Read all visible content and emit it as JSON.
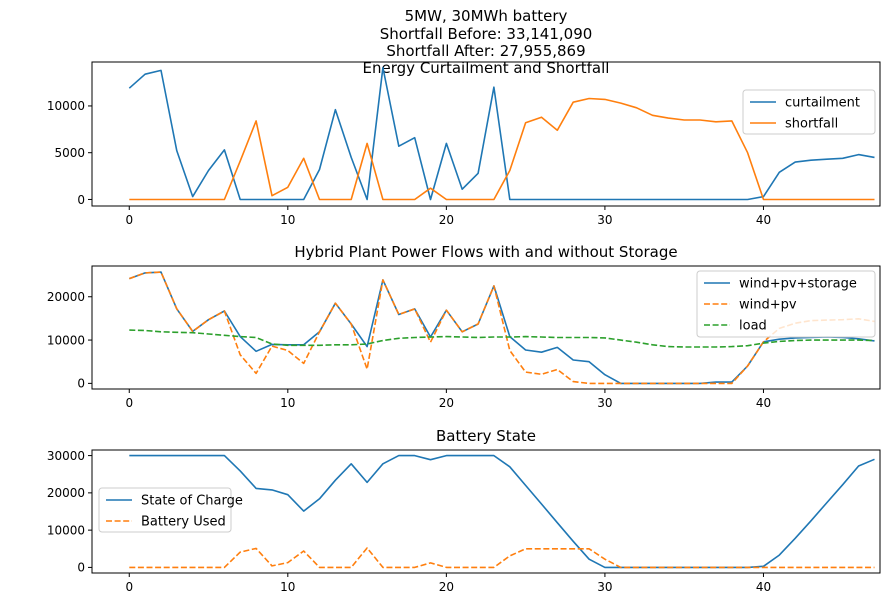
{
  "chart_data": [
    {
      "type": "line",
      "title_lines": [
        "5MW, 30MWh battery",
        "Shortfall Before: 33,141,090",
        "Shortfall After: 27,955,869",
        "Energy Curtailment and Shortfall"
      ],
      "x": [
        0,
        1,
        2,
        3,
        4,
        5,
        6,
        7,
        8,
        9,
        10,
        11,
        12,
        13,
        14,
        15,
        16,
        17,
        18,
        19,
        20,
        21,
        22,
        23,
        24,
        25,
        26,
        27,
        28,
        29,
        30,
        31,
        32,
        33,
        34,
        35,
        36,
        37,
        38,
        39,
        40,
        41,
        42,
        43,
        44,
        45,
        46,
        47
      ],
      "xlim": [
        -2.35,
        47.35
      ],
      "ylim": [
        -700,
        14700
      ],
      "xticks": [
        0,
        10,
        20,
        30,
        40
      ],
      "yticks": [
        0,
        5000,
        10000
      ],
      "grid": false,
      "legend_position": "upper-right",
      "series": [
        {
          "name": "curtailment",
          "color": "#1f77b4",
          "dash": "solid",
          "values": [
            11900,
            13400,
            13800,
            5200,
            300,
            3100,
            5300,
            0,
            0,
            0,
            0,
            0,
            3200,
            9600,
            4500,
            0,
            14100,
            5700,
            6600,
            0,
            6000,
            1100,
            2800,
            12000,
            0,
            0,
            0,
            0,
            0,
            0,
            0,
            0,
            0,
            0,
            0,
            0,
            0,
            0,
            0,
            0,
            300,
            2900,
            4000,
            4200,
            4300,
            4400,
            4800,
            4500
          ]
        },
        {
          "name": "shortfall",
          "color": "#ff7f0e",
          "dash": "solid",
          "values": [
            0,
            0,
            0,
            0,
            0,
            0,
            0,
            4100,
            8400,
            400,
            1300,
            4400,
            0,
            0,
            0,
            6000,
            0,
            0,
            0,
            1200,
            0,
            0,
            0,
            0,
            3100,
            8200,
            8800,
            7400,
            10400,
            10800,
            10700,
            10300,
            9800,
            9000,
            8700,
            8500,
            8500,
            8300,
            8400,
            5000,
            0,
            0,
            0,
            0,
            0,
            0,
            0,
            0
          ]
        }
      ]
    },
    {
      "type": "line",
      "title": "Hybrid Plant Power Flows with and without Storage",
      "x": [
        0,
        1,
        2,
        3,
        4,
        5,
        6,
        7,
        8,
        9,
        10,
        11,
        12,
        13,
        14,
        15,
        16,
        17,
        18,
        19,
        20,
        21,
        22,
        23,
        24,
        25,
        26,
        27,
        28,
        29,
        30,
        31,
        32,
        33,
        34,
        35,
        36,
        37,
        38,
        39,
        40,
        41,
        42,
        43,
        44,
        45,
        46,
        47
      ],
      "xlim": [
        -2.35,
        47.35
      ],
      "ylim": [
        -1300,
        27100
      ],
      "xticks": [
        0,
        10,
        20,
        30,
        40
      ],
      "yticks": [
        0,
        10000,
        20000
      ],
      "grid": false,
      "legend_position": "upper-right",
      "series": [
        {
          "name": "wind+pv+storage",
          "color": "#1f77b4",
          "dash": "solid",
          "values": [
            24200,
            25500,
            25700,
            17200,
            12000,
            14700,
            16700,
            10800,
            7400,
            9000,
            8900,
            8900,
            11900,
            18500,
            13700,
            8500,
            23900,
            15900,
            17200,
            10700,
            16900,
            11900,
            13700,
            22500,
            10800,
            7700,
            7200,
            8300,
            5400,
            5000,
            2000,
            0,
            0,
            0,
            0,
            0,
            0,
            300,
            300,
            4000,
            9600,
            10200,
            10500,
            10600,
            10700,
            10600,
            10300,
            9800
          ]
        },
        {
          "name": "wind+pv",
          "color": "#ff7f0e",
          "dash": "dashed",
          "values": [
            24200,
            25500,
            25700,
            17200,
            12000,
            14700,
            16700,
            6600,
            2300,
            8600,
            7600,
            4600,
            11900,
            18500,
            13700,
            3300,
            23900,
            15900,
            17200,
            9500,
            16900,
            11900,
            13700,
            22500,
            7600,
            2600,
            2100,
            3200,
            400,
            0,
            0,
            0,
            0,
            0,
            0,
            0,
            0,
            0,
            0,
            4000,
            9600,
            12700,
            13900,
            14500,
            14600,
            14700,
            14900,
            14300
          ]
        },
        {
          "name": "load",
          "color": "#2ca02c",
          "dash": "dashed",
          "values": [
            12300,
            12200,
            11900,
            11800,
            11700,
            11400,
            11100,
            10800,
            10600,
            9100,
            8800,
            8800,
            8800,
            8900,
            8900,
            9100,
            9900,
            10400,
            10600,
            10700,
            10800,
            10700,
            10600,
            10700,
            10700,
            10800,
            10700,
            10600,
            10600,
            10600,
            10500,
            10000,
            9500,
            8900,
            8500,
            8400,
            8400,
            8400,
            8500,
            8700,
            9300,
            9700,
            9900,
            10000,
            10000,
            10000,
            10000,
            9900
          ]
        }
      ]
    },
    {
      "type": "line",
      "title": "Battery State",
      "x": [
        0,
        1,
        2,
        3,
        4,
        5,
        6,
        7,
        8,
        9,
        10,
        11,
        12,
        13,
        14,
        15,
        16,
        17,
        18,
        19,
        20,
        21,
        22,
        23,
        24,
        25,
        26,
        27,
        28,
        29,
        30,
        31,
        32,
        33,
        34,
        35,
        36,
        37,
        38,
        39,
        40,
        41,
        42,
        43,
        44,
        45,
        46,
        47
      ],
      "xlim": [
        -2.35,
        47.35
      ],
      "ylim": [
        -1500,
        31500
      ],
      "xticks": [
        0,
        10,
        20,
        30,
        40
      ],
      "yticks": [
        0,
        10000,
        20000,
        30000
      ],
      "grid": false,
      "legend_position": "center-left",
      "series": [
        {
          "name": "State of Charge",
          "color": "#1f77b4",
          "dash": "solid",
          "values": [
            30000,
            30000,
            30000,
            30000,
            30000,
            30000,
            30000,
            25900,
            21200,
            20800,
            19500,
            15100,
            18400,
            23400,
            27800,
            22800,
            27800,
            30000,
            30000,
            28900,
            30000,
            30000,
            30000,
            30000,
            27000,
            22000,
            17000,
            12000,
            7000,
            2200,
            0,
            0,
            0,
            0,
            0,
            0,
            0,
            0,
            0,
            0,
            300,
            3300,
            7800,
            12500,
            17400,
            22200,
            27200,
            29000
          ]
        },
        {
          "name": "Battery Used",
          "color": "#ff7f0e",
          "dash": "dashed",
          "values": [
            0,
            0,
            0,
            0,
            0,
            0,
            0,
            4100,
            5100,
            400,
            1300,
            4400,
            0,
            0,
            0,
            5200,
            0,
            0,
            0,
            1200,
            0,
            0,
            0,
            0,
            3100,
            5000,
            5000,
            5000,
            5000,
            5000,
            2200,
            0,
            0,
            0,
            0,
            0,
            0,
            0,
            0,
            0,
            0,
            0,
            0,
            0,
            0,
            0,
            0,
            0
          ]
        }
      ]
    }
  ]
}
